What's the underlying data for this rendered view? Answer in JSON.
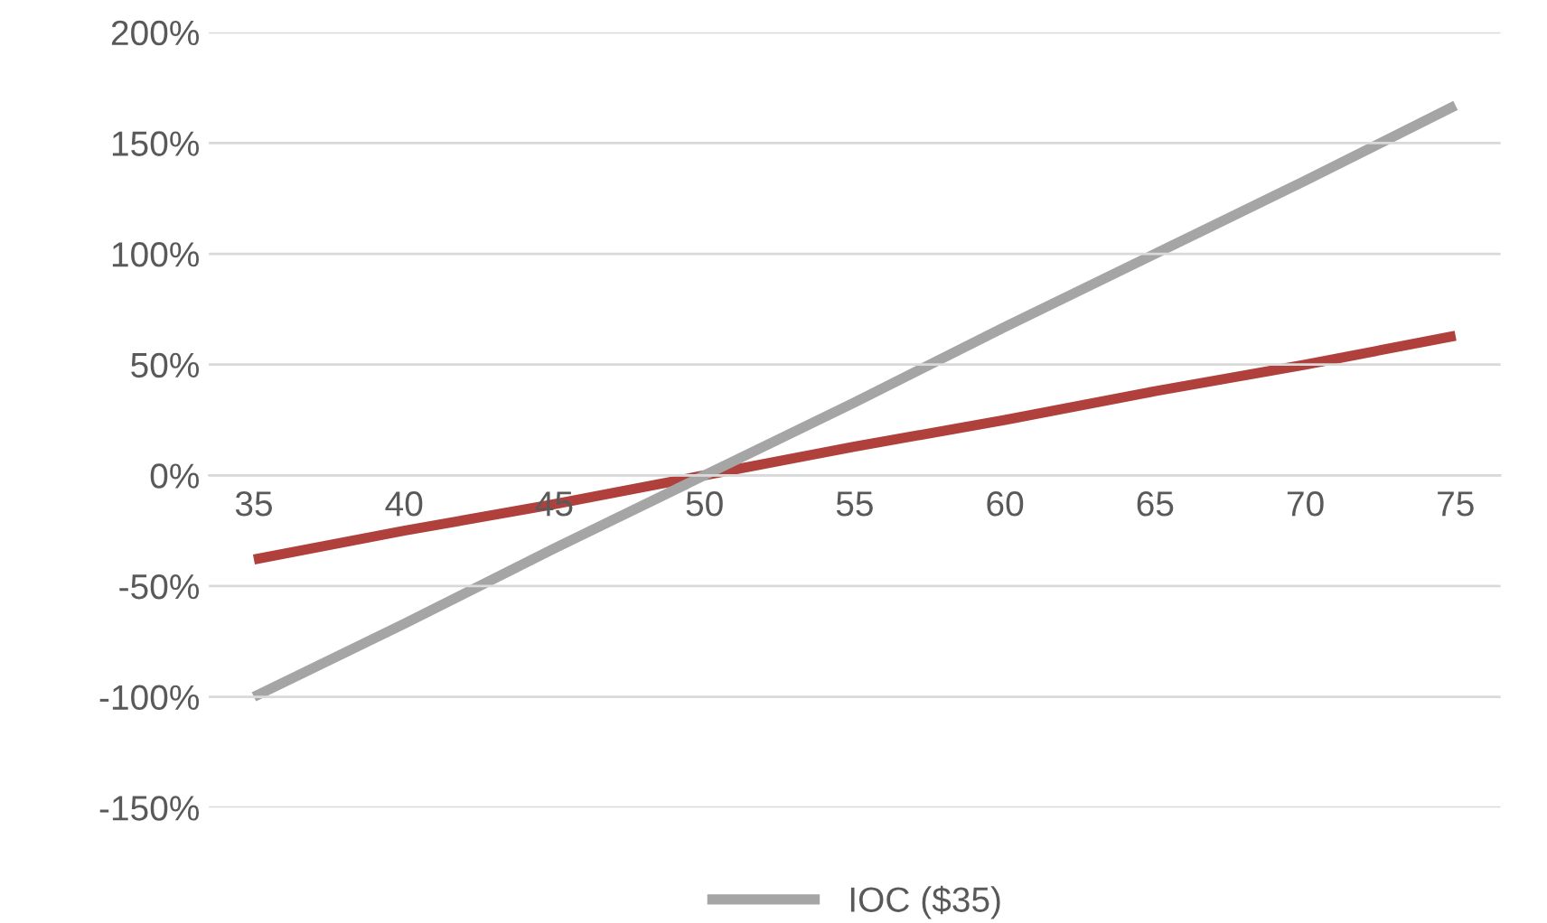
{
  "chart_data": {
    "type": "line",
    "categories": [
      "35",
      "40",
      "45",
      "50",
      "55",
      "60",
      "65",
      "70",
      "75"
    ],
    "series": [
      {
        "color": "#b0403c",
        "values": [
          -38,
          -25,
          -13,
          0,
          13,
          25,
          38,
          50,
          63
        ]
      },
      {
        "name": "IOC ($35)",
        "color": "#a5a5a5",
        "values": [
          -100,
          -67,
          -33,
          0,
          33,
          67,
          100,
          133,
          167
        ]
      }
    ],
    "ylim": [
      -150,
      200
    ],
    "yticks": [
      {
        "value": -150,
        "label": "-150%"
      },
      {
        "value": -100,
        "label": "-100%"
      },
      {
        "value": -50,
        "label": "-50%"
      },
      {
        "value": 0,
        "label": "0%"
      },
      {
        "value": 50,
        "label": "50%"
      },
      {
        "value": 100,
        "label": "100%"
      },
      {
        "value": 150,
        "label": "150%"
      },
      {
        "value": 200,
        "label": "200%"
      }
    ],
    "grid": "y",
    "legend": "bottom",
    "marker": "none",
    "line_style": "solid"
  }
}
